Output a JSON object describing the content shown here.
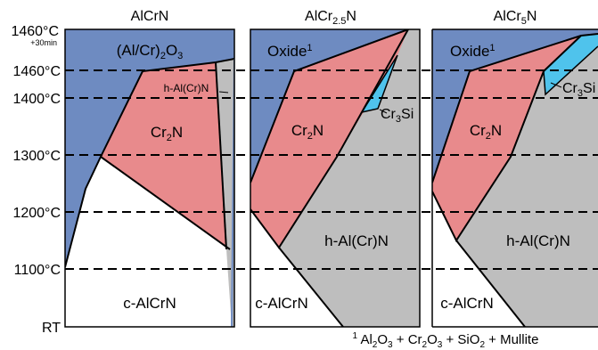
{
  "y_axis": {
    "labels": [
      "1460°C",
      "+30min",
      "1460°C",
      "1400°C",
      "1300°C",
      "1200°C",
      "1100°C",
      "RT"
    ]
  },
  "panels": [
    {
      "title": "AlCrN",
      "regions": {
        "oxide_main": "(Al/Cr)",
        "oxide_sub1": "2",
        "oxide_mid": "O",
        "oxide_sub2": "3",
        "cr2n_main": "Cr",
        "cr2n_sub": "2",
        "cr2n_tail": "N",
        "hal": "h-Al(Cr)N",
        "cal": "c-AlCrN"
      }
    },
    {
      "title_main": "AlCr",
      "title_sub": "2.5",
      "title_tail": "N",
      "regions": {
        "oxide": "Oxide",
        "oxide_sup": "1",
        "cr2n_main": "Cr",
        "cr2n_sub": "2",
        "cr2n_tail": "N",
        "cr3si_main": "Cr",
        "cr3si_sub": "3",
        "cr3si_tail": "Si",
        "hal": "h-Al(Cr)N",
        "cal": "c-AlCrN"
      }
    },
    {
      "title_main": "AlCr",
      "title_sub": "5",
      "title_tail": "N",
      "regions": {
        "oxide": "Oxide",
        "oxide_sup": "1",
        "cr2n_main": "Cr",
        "cr2n_sub": "2",
        "cr2n_tail": "N",
        "cr3si_main": "Cr",
        "cr3si_sub": "3",
        "cr3si_tail": "Si",
        "hal": "h-Al(Cr)N",
        "cal": "c-AlCrN"
      }
    }
  ],
  "footnote": {
    "marker": "1",
    "p1": " Al",
    "s1": "2",
    "p2": "O",
    "s2": "3",
    "p3": " + Cr",
    "s3": "2",
    "p4": "O",
    "s4": "3",
    "p5": " + SiO",
    "s5": "2",
    "p6": " + Mullite"
  },
  "colors": {
    "oxide": "#6e8bc1",
    "cr2n": "#e88a8c",
    "hal": "#bebebe",
    "cr3si": "#4fc3ec",
    "cal": "#ffffff"
  }
}
